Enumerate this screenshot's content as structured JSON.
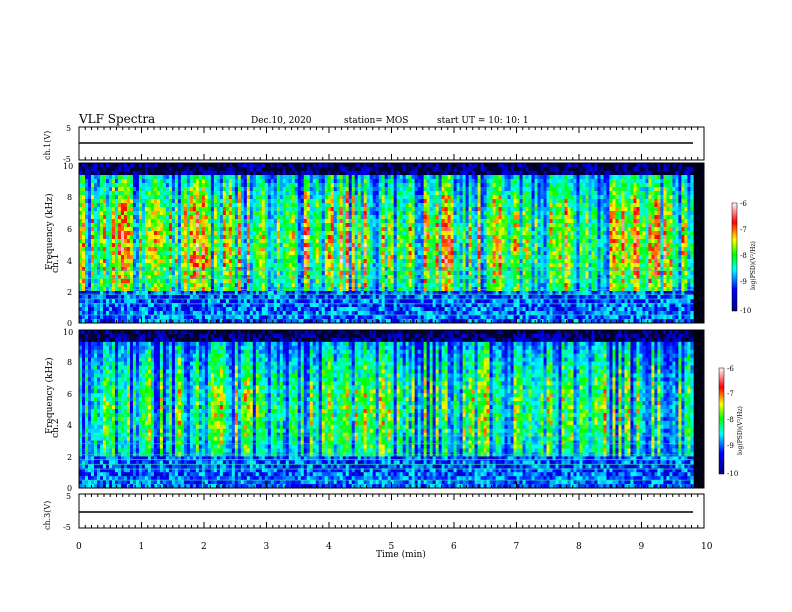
{
  "header": {
    "title": "VLF Spectra",
    "date": "Dec.10, 2020",
    "station": "station= MOS",
    "start": "start  UT =   10: 10: 1"
  },
  "chart_data": [
    {
      "type": "line",
      "ylabel": "ch.1(V)",
      "ylim": [
        -5,
        5
      ],
      "yticks": [
        "5",
        "-5"
      ],
      "series": [
        {
          "values": [
            [
              0,
              0
            ],
            [
              9.83,
              0
            ]
          ]
        }
      ]
    },
    {
      "type": "heatmap",
      "ylabel": "ch.1\nFrequency (kHz)",
      "ylim": [
        0,
        10
      ],
      "yticks": [
        "0",
        "2",
        "4",
        "6",
        "8",
        "10"
      ],
      "colorbar": {
        "label": "log(PSD)(V²/Hz)",
        "ticks": [
          "-6",
          "-7",
          "-8",
          "-9",
          "-10"
        ],
        "range": [
          -10,
          -6
        ],
        "colors": [
          "#000080",
          "#0000ff",
          "#00ffff",
          "#00ff00",
          "#ffff00",
          "#ff0000",
          "#ffffff"
        ]
      }
    },
    {
      "type": "heatmap",
      "ylabel": "ch.2\nFrequency (kHz)",
      "ylim": [
        0,
        10
      ],
      "yticks": [
        "0",
        "2",
        "4",
        "6",
        "8",
        "10"
      ],
      "colorbar": {
        "label": "log(PSD)(V²/Hz)",
        "ticks": [
          "-6",
          "-7",
          "-8",
          "-9",
          "-10"
        ],
        "range": [
          -10,
          -6
        ],
        "colors": [
          "#000080",
          "#0000ff",
          "#00ffff",
          "#00ff00",
          "#ffff00",
          "#ff0000",
          "#ffffff"
        ]
      }
    },
    {
      "type": "line",
      "ylabel": "ch.3(V)",
      "ylim": [
        -5,
        5
      ],
      "yticks": [
        "5",
        "-5"
      ],
      "series": [
        {
          "values": [
            [
              0,
              0
            ],
            [
              9.83,
              0
            ]
          ]
        }
      ]
    }
  ],
  "xaxis": {
    "label": "Time (min)",
    "xlim": [
      0,
      10
    ],
    "ticks": [
      "0",
      "1",
      "2",
      "3",
      "4",
      "5",
      "6",
      "7",
      "8",
      "9",
      "10"
    ]
  }
}
